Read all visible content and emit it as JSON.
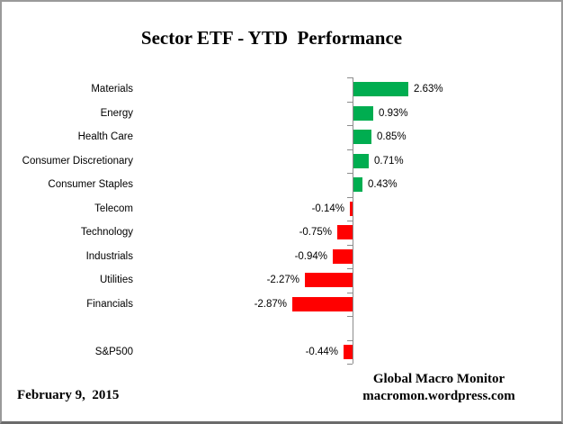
{
  "title": "Sector ETF - YTD  Performance",
  "footer": {
    "date": "February 9,  2015",
    "brand_line1": "Global Macro Monitor",
    "brand_line2": "macromon.wordpress.com"
  },
  "colors": {
    "positive_bar": "#00AD50",
    "negative_bar": "#FF0000",
    "axis": "#8c8c8c",
    "text": "#000000",
    "frame_border": "#9a9a9a"
  },
  "chart_data": {
    "type": "bar",
    "orientation": "horizontal",
    "title": "Sector ETF - YTD  Performance",
    "xlabel": "",
    "ylabel": "",
    "xlim": [
      -3.0,
      3.0
    ],
    "grid": false,
    "legend": false,
    "color_rule": "positive=green, negative=red",
    "categories": [
      "Materials",
      "Energy",
      "Health Care",
      "Consumer Discretionary",
      "Consumer Staples",
      "Telecom",
      "Technology",
      "Industrials",
      "Utilities",
      "Financials",
      "",
      "S&P500"
    ],
    "values": [
      2.63,
      0.93,
      0.85,
      0.71,
      0.43,
      -0.14,
      -0.75,
      -0.94,
      -2.27,
      -2.87,
      null,
      -0.44
    ],
    "value_labels": [
      "2.63%",
      "0.93%",
      "0.85%",
      "0.71%",
      "0.43%",
      "-0.14%",
      "-0.75%",
      "-0.94%",
      "-2.27%",
      "-2.87%",
      null,
      "-0.44%"
    ]
  }
}
